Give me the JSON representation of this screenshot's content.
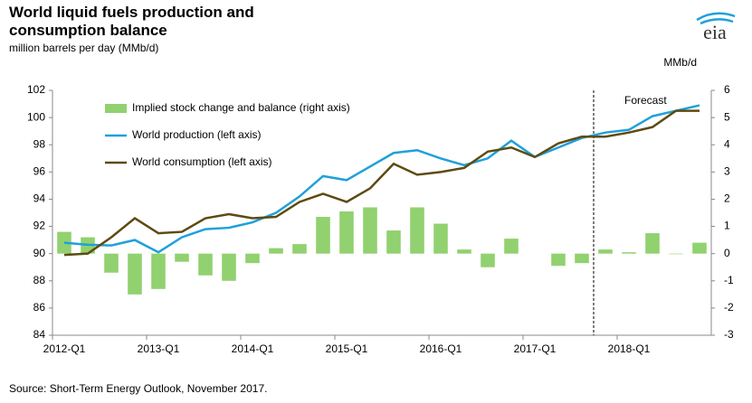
{
  "chart_data": {
    "type": "bar_line",
    "title": "World liquid fuels production and consumption balance",
    "subtitle": "million barrels per day (MMb/d)",
    "y2_axis_label": "MMb/d",
    "annotation": "Forecast",
    "source": "Source: Short-Term Energy Outlook, November 2017.",
    "logo": "eia",
    "categories": [
      "2012-Q1",
      null,
      null,
      null,
      "2013-Q1",
      null,
      null,
      null,
      "2014-Q1",
      null,
      null,
      null,
      "2015-Q1",
      null,
      null,
      null,
      "2016-Q1",
      null,
      null,
      null,
      "2017-Q1",
      null,
      null,
      null,
      "2018-Q1",
      null,
      null,
      null
    ],
    "series": [
      {
        "name": "Implied stock change and balance (right axis)",
        "type": "bar",
        "axis": "y2",
        "color": "#92d16f",
        "values": [
          0.8,
          0.6,
          -0.7,
          -1.5,
          -1.3,
          -0.3,
          -0.8,
          -1.0,
          -0.35,
          0.2,
          0.35,
          1.35,
          1.55,
          1.7,
          0.85,
          1.7,
          1.1,
          0.15,
          -0.5,
          0.55,
          0,
          -0.45,
          -0.35,
          0.15,
          0.05,
          0.75,
          -0.02,
          0.4
        ]
      },
      {
        "name": "World production (left axis)",
        "type": "line",
        "axis": "y",
        "color": "#1fa0db",
        "values": [
          90.8,
          90.65,
          90.6,
          91.0,
          90.1,
          91.2,
          91.8,
          91.9,
          92.3,
          93.0,
          94.2,
          95.7,
          95.4,
          96.4,
          97.4,
          97.6,
          97.0,
          96.5,
          97.0,
          98.3,
          97.1,
          97.8,
          98.5,
          98.9,
          99.1,
          100.1,
          100.5,
          100.9
        ]
      },
      {
        "name": "World consumption (left axis)",
        "type": "line",
        "axis": "y",
        "color": "#5e4a12",
        "values": [
          89.9,
          90.0,
          91.2,
          92.6,
          91.5,
          91.6,
          92.6,
          92.9,
          92.6,
          92.7,
          93.8,
          94.4,
          93.8,
          94.8,
          96.6,
          95.8,
          96.0,
          96.3,
          97.5,
          97.8,
          97.1,
          98.1,
          98.6,
          98.6,
          98.9,
          99.3,
          100.5,
          100.5
        ]
      }
    ],
    "ylim": [
      84,
      102
    ],
    "yticks": [
      84,
      86,
      88,
      90,
      92,
      94,
      96,
      98,
      100,
      102
    ],
    "y2lim": [
      -3,
      6
    ],
    "y2ticks": [
      -3,
      -2,
      -1,
      0,
      1,
      2,
      3,
      4,
      5,
      6
    ],
    "legend": "upper left",
    "grid": false
  }
}
